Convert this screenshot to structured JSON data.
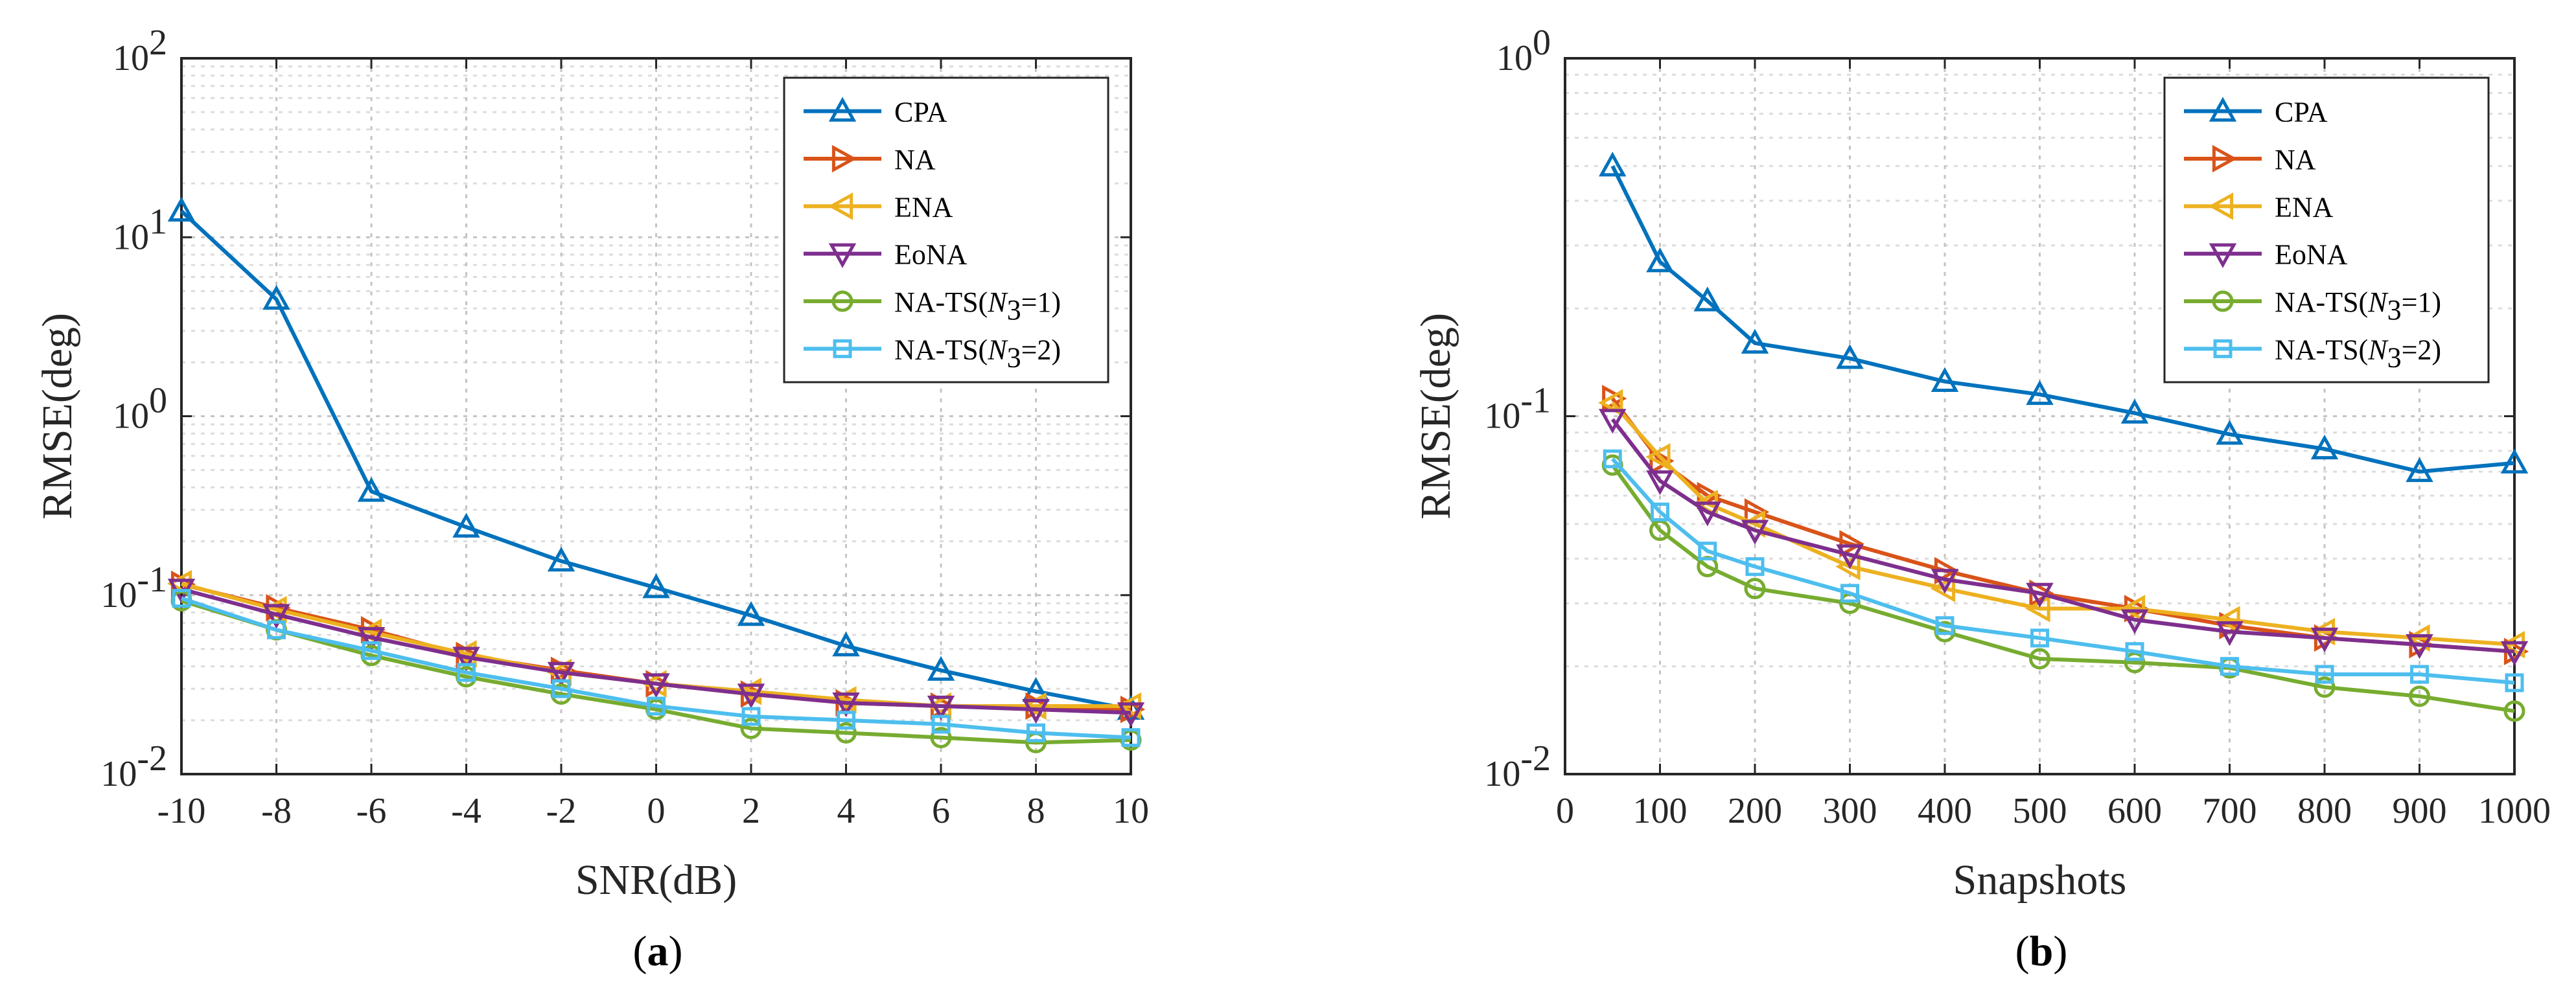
{
  "chart_data": [
    {
      "type": "line",
      "caption_open": "(",
      "caption_letter": "a",
      "caption_close": ")",
      "xlabel": "SNR(dB)",
      "ylabel": "RMSE(deg)",
      "yscale": "log",
      "grid": true,
      "legend_position": "top-right",
      "xlim": [
        -10,
        10
      ],
      "ylim": [
        0.01,
        100
      ],
      "x": [
        -10,
        -8,
        -6,
        -4,
        -2,
        0,
        2,
        4,
        6,
        8,
        10
      ],
      "x_tick_labels": [
        "-10",
        "-8",
        "-6",
        "-4",
        "-2",
        "0",
        "2",
        "4",
        "6",
        "8",
        "10"
      ],
      "y_ticks": [
        {
          "value": 100,
          "base": "10",
          "exp": "2"
        },
        {
          "value": 10,
          "base": "10",
          "exp": "1"
        },
        {
          "value": 1,
          "base": "10",
          "exp": "0"
        },
        {
          "value": 0.1,
          "base": "10",
          "exp": "-1"
        },
        {
          "value": 0.01,
          "base": "10",
          "exp": "-2"
        }
      ],
      "series": [
        {
          "name": "CPA",
          "label_parts": [
            "CPA"
          ],
          "marker": "triangle-up",
          "color": "#0072BD",
          "values": [
            14.0,
            4.5,
            0.38,
            0.24,
            0.155,
            0.11,
            0.077,
            0.052,
            0.038,
            0.029,
            0.023
          ]
        },
        {
          "name": "NA",
          "label_parts": [
            "NA"
          ],
          "marker": "triangle-right",
          "color": "#D95319",
          "values": [
            0.115,
            0.085,
            0.064,
            0.046,
            0.038,
            0.032,
            0.028,
            0.025,
            0.024,
            0.024,
            0.023
          ]
        },
        {
          "name": "ENA",
          "label_parts": [
            "ENA"
          ],
          "marker": "triangle-left",
          "color": "#EDB120",
          "values": [
            0.116,
            0.083,
            0.062,
            0.047,
            0.037,
            0.032,
            0.029,
            0.026,
            0.024,
            0.024,
            0.024
          ]
        },
        {
          "name": "EoNA",
          "label_parts": [
            "EoNA"
          ],
          "marker": "triangle-down",
          "color": "#7E2F8E",
          "values": [
            0.108,
            0.078,
            0.058,
            0.045,
            0.037,
            0.032,
            0.028,
            0.025,
            0.024,
            0.023,
            0.022
          ]
        },
        {
          "name": "NA-TS(N3=1)",
          "label_parts": [
            "NA-TS(",
            "N",
            "3",
            "=1)"
          ],
          "marker": "circle",
          "color": "#77AC30",
          "values": [
            0.093,
            0.064,
            0.046,
            0.035,
            0.028,
            0.023,
            0.018,
            0.017,
            0.016,
            0.015,
            0.0155
          ]
        },
        {
          "name": "NA-TS(N3=2)",
          "label_parts": [
            "NA-TS(",
            "N",
            "3",
            "=2)"
          ],
          "marker": "square",
          "color": "#4DBEEE",
          "values": [
            0.096,
            0.064,
            0.049,
            0.037,
            0.03,
            0.024,
            0.021,
            0.02,
            0.019,
            0.017,
            0.016
          ]
        }
      ]
    },
    {
      "type": "line",
      "caption_open": "(",
      "caption_letter": "b",
      "caption_close": ")",
      "xlabel": "Snapshots",
      "ylabel": "RMSE(deg)",
      "yscale": "log",
      "grid": true,
      "legend_position": "top-right",
      "xlim": [
        0,
        1000
      ],
      "ylim": [
        0.01,
        1
      ],
      "x": [
        50,
        100,
        150,
        200,
        300,
        400,
        500,
        600,
        700,
        800,
        900,
        1000
      ],
      "x_ticks": [
        0,
        100,
        200,
        300,
        400,
        500,
        600,
        700,
        800,
        900,
        1000
      ],
      "x_tick_labels": [
        "0",
        "100",
        "200",
        "300",
        "400",
        "500",
        "600",
        "700",
        "800",
        "900",
        "1000"
      ],
      "y_ticks": [
        {
          "value": 1,
          "base": "10",
          "exp": "0"
        },
        {
          "value": 0.1,
          "base": "10",
          "exp": "-1"
        },
        {
          "value": 0.01,
          "base": "10",
          "exp": "-2"
        }
      ],
      "series": [
        {
          "name": "CPA",
          "label_parts": [
            "CPA"
          ],
          "marker": "triangle-up",
          "color": "#0072BD",
          "values": [
            0.5,
            0.27,
            0.21,
            0.16,
            0.145,
            0.125,
            0.115,
            0.102,
            0.089,
            0.081,
            0.07,
            0.074
          ]
        },
        {
          "name": "NA",
          "label_parts": [
            "NA"
          ],
          "marker": "triangle-right",
          "color": "#D95319",
          "values": [
            0.112,
            0.075,
            0.06,
            0.054,
            0.044,
            0.037,
            0.032,
            0.029,
            0.026,
            0.024,
            0.023,
            0.022
          ]
        },
        {
          "name": "ENA",
          "label_parts": [
            "ENA"
          ],
          "marker": "triangle-left",
          "color": "#EDB120",
          "values": [
            0.109,
            0.077,
            0.057,
            0.05,
            0.038,
            0.033,
            0.029,
            0.029,
            0.027,
            0.025,
            0.024,
            0.023
          ]
        },
        {
          "name": "EoNA",
          "label_parts": [
            "EoNA"
          ],
          "marker": "triangle-down",
          "color": "#7E2F8E",
          "values": [
            0.098,
            0.066,
            0.054,
            0.048,
            0.041,
            0.035,
            0.032,
            0.027,
            0.025,
            0.024,
            0.023,
            0.022
          ]
        },
        {
          "name": "NA-TS(N3=1)",
          "label_parts": [
            "NA-TS(",
            "N",
            "3",
            "=1)"
          ],
          "marker": "circle",
          "color": "#77AC30",
          "values": [
            0.073,
            0.048,
            0.038,
            0.033,
            0.03,
            0.025,
            0.021,
            0.0205,
            0.0198,
            0.0175,
            0.0165,
            0.015
          ]
        },
        {
          "name": "NA-TS(N3=2)",
          "label_parts": [
            "NA-TS(",
            "N",
            "3",
            "=2)"
          ],
          "marker": "square",
          "color": "#4DBEEE",
          "values": [
            0.076,
            0.054,
            0.042,
            0.038,
            0.032,
            0.026,
            0.024,
            0.022,
            0.02,
            0.019,
            0.019,
            0.018
          ]
        }
      ]
    }
  ]
}
